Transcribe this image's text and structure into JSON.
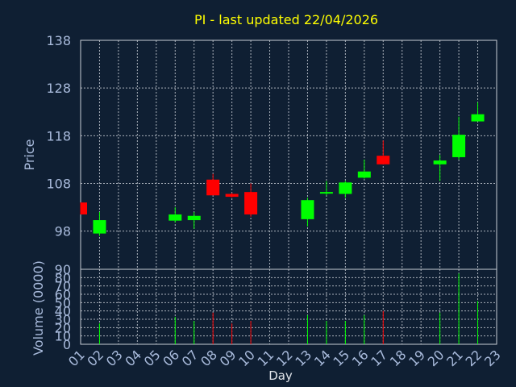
{
  "chart_data": [
    {
      "type": "candlestick",
      "title": "PI - last updated 22/04/2026",
      "ylabel": "Price",
      "ylim": [
        90,
        138
      ],
      "yticks": [
        138,
        128,
        118,
        108,
        98,
        90
      ],
      "grid": true,
      "colors": {
        "up": "#00ff00",
        "down": "#ff0000"
      },
      "candles": [
        {
          "day": "01",
          "open": 104.0,
          "close": 101.5,
          "high": 104.0,
          "low": 101.5
        },
        {
          "day": "02",
          "open": 97.5,
          "close": 100.3,
          "high": 102.0,
          "low": 97.0
        },
        {
          "day": "06",
          "open": 100.2,
          "close": 101.5,
          "high": 103.0,
          "low": 99.8
        },
        {
          "day": "07",
          "open": 100.3,
          "close": 101.2,
          "high": 102.0,
          "low": 98.5
        },
        {
          "day": "08",
          "open": 108.8,
          "close": 105.5,
          "high": 110.0,
          "low": 105.5
        },
        {
          "day": "09",
          "open": 105.8,
          "close": 105.2,
          "high": 106.0,
          "low": 105.0
        },
        {
          "day": "10",
          "open": 106.2,
          "close": 101.5,
          "high": 108.0,
          "low": 101.0
        },
        {
          "day": "13",
          "open": 100.5,
          "close": 104.5,
          "high": 105.0,
          "low": 99.0
        },
        {
          "day": "14",
          "open": 105.9,
          "close": 106.2,
          "high": 108.5,
          "low": 105.5
        },
        {
          "day": "15",
          "open": 105.8,
          "close": 108.2,
          "high": 108.5,
          "low": 105.0
        },
        {
          "day": "16",
          "open": 109.2,
          "close": 110.5,
          "high": 113.0,
          "low": 109.0
        },
        {
          "day": "17",
          "open": 113.8,
          "close": 112.0,
          "high": 117.0,
          "low": 112.0
        },
        {
          "day": "20",
          "open": 112.0,
          "close": 112.8,
          "high": 114.0,
          "low": 108.5
        },
        {
          "day": "21",
          "open": 113.5,
          "close": 118.2,
          "high": 122.0,
          "low": 113.0
        },
        {
          "day": "22",
          "open": 121.0,
          "close": 122.5,
          "high": 125.0,
          "low": 121.0
        }
      ]
    },
    {
      "type": "bar",
      "ylabel": "Volume (0000)",
      "ylim": [
        0,
        90
      ],
      "yticks": [
        0,
        10,
        20,
        30,
        40,
        50,
        60,
        70,
        80,
        90
      ],
      "xlabel": "Day",
      "categories": [
        "01",
        "02",
        "03",
        "04",
        "05",
        "06",
        "07",
        "08",
        "09",
        "10",
        "11",
        "12",
        "13",
        "14",
        "15",
        "16",
        "17",
        "18",
        "19",
        "20",
        "21",
        "22",
        "23"
      ],
      "values": [
        0,
        25,
        0,
        0,
        0,
        33,
        28,
        38,
        25,
        28,
        0,
        0,
        35,
        28,
        28,
        35,
        40,
        0,
        0,
        38,
        85,
        52,
        0
      ],
      "bar_colors": [
        "none",
        "up",
        "none",
        "none",
        "none",
        "up",
        "up",
        "down",
        "down",
        "down",
        "none",
        "none",
        "up",
        "up",
        "up",
        "up",
        "down",
        "none",
        "none",
        "up",
        "up",
        "up",
        "none"
      ],
      "grid": true
    }
  ]
}
